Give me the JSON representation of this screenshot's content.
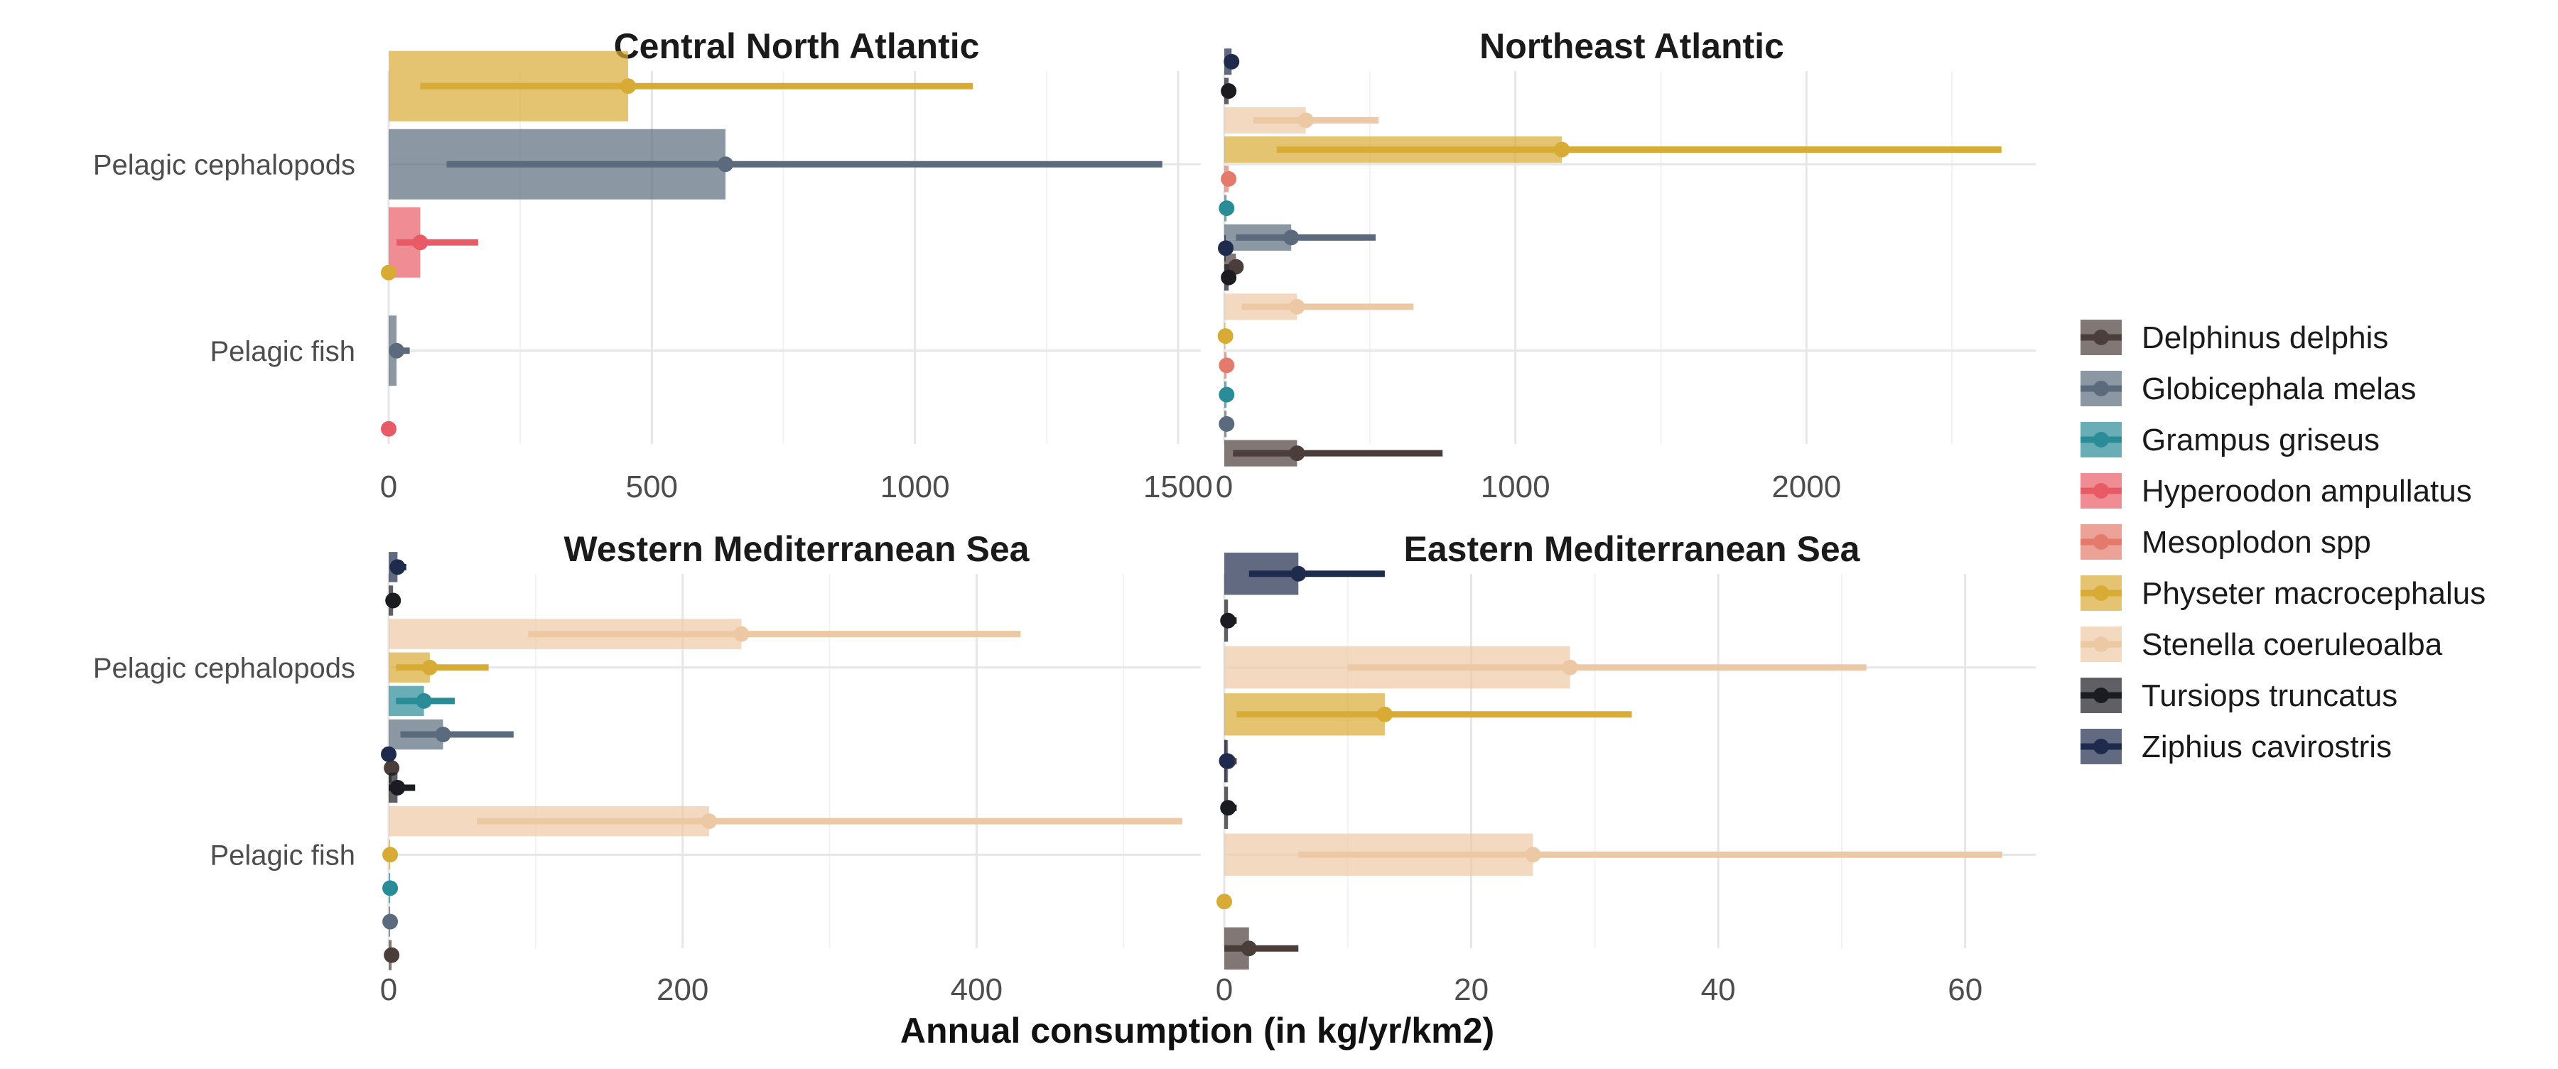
{
  "chart_data": {
    "type": "bar",
    "xlabel": "Annual consumption (in kg/yr/km2)",
    "ylabel": "",
    "legend_position": "right",
    "grid": true,
    "categories": [
      "Pelagic cephalopods",
      "Pelagic fish"
    ],
    "species": [
      {
        "name": "Delphinus delphis",
        "color": "#4b3d3a"
      },
      {
        "name": "Globicephala melas",
        "color": "#5b6b7d"
      },
      {
        "name": "Grampus griseus",
        "color": "#2a8c97"
      },
      {
        "name": "Hyperoodon ampullatus",
        "color": "#e85b66"
      },
      {
        "name": "Mesoplodon spp",
        "color": "#e47a6b"
      },
      {
        "name": "Physeter macrocephalus",
        "color": "#d8ab35"
      },
      {
        "name": "Stenella coeruleoalba",
        "color": "#ecc9a4"
      },
      {
        "name": "Tursiops truncatus",
        "color": "#1b1b22"
      },
      {
        "name": "Ziphius cavirostris",
        "color": "#1f2b4c"
      }
    ],
    "panels": [
      {
        "title": "Central North Atlantic",
        "xlim": [
          0,
          1550
        ],
        "xticks": [
          0,
          500,
          1000,
          1500
        ],
        "species_order": [
          "Hyperoodon ampullatus",
          "Globicephala melas",
          "Physeter macrocephalus"
        ],
        "series": [
          {
            "species": "Hyperoodon ampullatus",
            "values": [
              60,
              0
            ],
            "low": [
              15,
              0
            ],
            "high": [
              170,
              0
            ]
          },
          {
            "species": "Globicephala melas",
            "values": [
              640,
              15
            ],
            "low": [
              110,
              3
            ],
            "high": [
              1470,
              40
            ]
          },
          {
            "species": "Physeter macrocephalus",
            "values": [
              455,
              0
            ],
            "low": [
              60,
              0
            ],
            "high": [
              1110,
              0
            ]
          }
        ]
      },
      {
        "title": "Northeast Atlantic",
        "xlim": [
          0,
          2800
        ],
        "xticks": [
          0,
          1000,
          2000
        ],
        "species_order": [
          "Delphinus delphis",
          "Globicephala melas",
          "Grampus griseus",
          "Mesoplodon spp",
          "Physeter macrocephalus",
          "Stenella coeruleoalba",
          "Tursiops truncatus",
          "Ziphius cavirostris"
        ],
        "series": [
          {
            "species": "Delphinus delphis",
            "values": [
              40,
              250
            ],
            "low": [
              25,
              30
            ],
            "high": [
              65,
              750
            ]
          },
          {
            "species": "Globicephala melas",
            "values": [
              230,
              8
            ],
            "low": [
              40,
              0
            ],
            "high": [
              520,
              20
            ]
          },
          {
            "species": "Grampus griseus",
            "values": [
              8,
              8
            ],
            "low": [
              0,
              0
            ],
            "high": [
              15,
              15
            ]
          },
          {
            "species": "Mesoplodon spp",
            "values": [
              15,
              8
            ],
            "low": [
              0,
              0
            ],
            "high": [
              25,
              15
            ]
          },
          {
            "species": "Physeter macrocephalus",
            "values": [
              1160,
              4
            ],
            "low": [
              180,
              0
            ],
            "high": [
              2670,
              10
            ]
          },
          {
            "species": "Stenella coeruleoalba",
            "values": [
              280,
              250
            ],
            "low": [
              100,
              60
            ],
            "high": [
              530,
              650
            ]
          },
          {
            "species": "Tursiops truncatus",
            "values": [
              15,
              15
            ],
            "low": [
              5,
              5
            ],
            "high": [
              30,
              30
            ]
          },
          {
            "species": "Ziphius cavirostris",
            "values": [
              25,
              5
            ],
            "low": [
              10,
              0
            ],
            "high": [
              45,
              15
            ]
          }
        ]
      },
      {
        "title": "Western Mediterranean Sea",
        "xlim": [
          0,
          555
        ],
        "xticks": [
          0,
          200,
          400
        ],
        "species_order": [
          "Delphinus delphis",
          "Globicephala melas",
          "Grampus griseus",
          "Physeter macrocephalus",
          "Stenella coeruleoalba",
          "Tursiops truncatus",
          "Ziphius cavirostris"
        ],
        "series": [
          {
            "species": "Delphinus delphis",
            "values": [
              2,
              2
            ],
            "low": [
              0,
              0
            ],
            "high": [
              4,
              4
            ]
          },
          {
            "species": "Globicephala melas",
            "values": [
              37,
              1
            ],
            "low": [
              8,
              0
            ],
            "high": [
              85,
              3
            ]
          },
          {
            "species": "Grampus griseus",
            "values": [
              24,
              1
            ],
            "low": [
              5,
              0
            ],
            "high": [
              45,
              3
            ]
          },
          {
            "species": "Physeter macrocephalus",
            "values": [
              28,
              1
            ],
            "low": [
              5,
              0
            ],
            "high": [
              68,
              3
            ]
          },
          {
            "species": "Stenella coeruleoalba",
            "values": [
              240,
              218
            ],
            "low": [
              95,
              60
            ],
            "high": [
              430,
              540
            ]
          },
          {
            "species": "Tursiops truncatus",
            "values": [
              3,
              6
            ],
            "low": [
              0,
              0
            ],
            "high": [
              8,
              18
            ]
          },
          {
            "species": "Ziphius cavirostris",
            "values": [
              6,
              0
            ],
            "low": [
              2,
              0
            ],
            "high": [
              12,
              3
            ]
          }
        ]
      },
      {
        "title": "Eastern Mediterranean Sea",
        "xlim": [
          0,
          66
        ],
        "xticks": [
          0,
          20,
          40,
          60
        ],
        "species_order": [
          "Delphinus delphis",
          "Physeter macrocephalus",
          "Stenella coeruleoalba",
          "Tursiops truncatus",
          "Ziphius cavirostris"
        ],
        "series": [
          {
            "species": "Delphinus delphis",
            "values": [
              0.3,
              2
            ],
            "low": [
              0,
              0
            ],
            "high": [
              1,
              6
            ]
          },
          {
            "species": "Physeter macrocephalus",
            "values": [
              13,
              0
            ],
            "low": [
              1,
              0
            ],
            "high": [
              33,
              0.5
            ]
          },
          {
            "species": "Stenella coeruleoalba",
            "values": [
              28,
              25
            ],
            "low": [
              10,
              6
            ],
            "high": [
              52,
              63
            ]
          },
          {
            "species": "Tursiops truncatus",
            "values": [
              0.3,
              0.3
            ],
            "low": [
              0,
              0
            ],
            "high": [
              1,
              1
            ]
          },
          {
            "species": "Ziphius cavirostris",
            "values": [
              6,
              0.2
            ],
            "low": [
              2,
              0
            ],
            "high": [
              13,
              0.6
            ]
          }
        ]
      }
    ]
  }
}
